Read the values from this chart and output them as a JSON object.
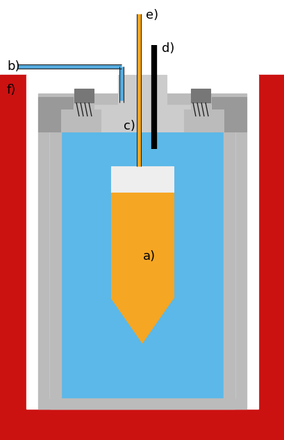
{
  "colors": {
    "red_furnace": "#CC1111",
    "blue_water": "#5BB8E8",
    "gray_bomb_outer": "#999999",
    "gray_bomb_mid": "#BBBBBB",
    "gray_bomb_light": "#CCCCCC",
    "dark_gray": "#777777",
    "darker_gray": "#555555",
    "orange_cell": "#F5A623",
    "white_cap": "#EEEEEE",
    "black": "#000000",
    "white": "#FFFFFF",
    "blue_tube": "#55AADD",
    "outline": "#222222"
  },
  "labels": {
    "a": "a)",
    "b": "b)",
    "c": "c)",
    "d": "d)",
    "e": "e)",
    "f": "f)"
  },
  "figsize": [
    4.1,
    6.35
  ],
  "dpi": 100
}
